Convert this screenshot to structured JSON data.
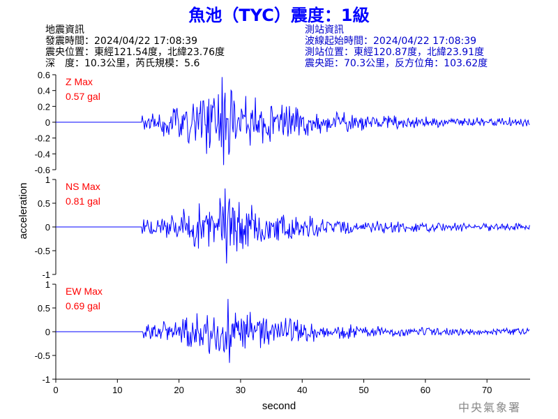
{
  "title": "魚池（TYC）震度：1級",
  "quake_info": {
    "heading": "地震資訊",
    "time": "發震時間：2024/04/22 17:08:39",
    "epicenter": "震央位置：東經121.54度，北緯23.76度",
    "depth_magnitude": "深　度：10.3公里，芮氏規模：5.6"
  },
  "station_info": {
    "heading": "測站資訊",
    "start_time": "波線起始時間：2024/04/22 17:08:39",
    "location": "測站位置：東經120.87度，北緯23.91度",
    "distance": "震央距：70.3公里，反方位角：103.62度"
  },
  "credit": "中央氣象署",
  "colors": {
    "trace": "#0000ff",
    "max_label": "#ff0000",
    "title": "#0000ff",
    "station_info": "#0000cc"
  },
  "chart_data": {
    "type": "line",
    "xlabel": "second",
    "ylabel": "acceleration",
    "xlim": [
      0,
      77
    ],
    "x_ticks": [
      "0",
      "10",
      "20",
      "30",
      "40",
      "50",
      "60",
      "70"
    ],
    "wave_start": 14,
    "panels": [
      {
        "name": "Z",
        "max_title": "Z Max",
        "max_value": "0.57 gal",
        "peak": 0.57,
        "ylim": [
          -0.6,
          0.6
        ],
        "y_ticks": [
          "0.6",
          "0.4",
          "0.2",
          "0",
          "-0.2",
          "-0.4",
          "-0.6"
        ]
      },
      {
        "name": "NS",
        "max_title": "NS Max",
        "max_value": "0.81 gal",
        "peak": 0.81,
        "ylim": [
          -1,
          1
        ],
        "y_ticks": [
          "1",
          "0.5",
          "0",
          "-0.5",
          "-1"
        ]
      },
      {
        "name": "EW",
        "max_title": "EW Max",
        "max_value": "0.69 gal",
        "peak": 0.69,
        "ylim": [
          -1,
          1
        ],
        "y_ticks": [
          "1",
          "0.5",
          "0",
          "-0.5",
          "-1"
        ]
      }
    ]
  }
}
